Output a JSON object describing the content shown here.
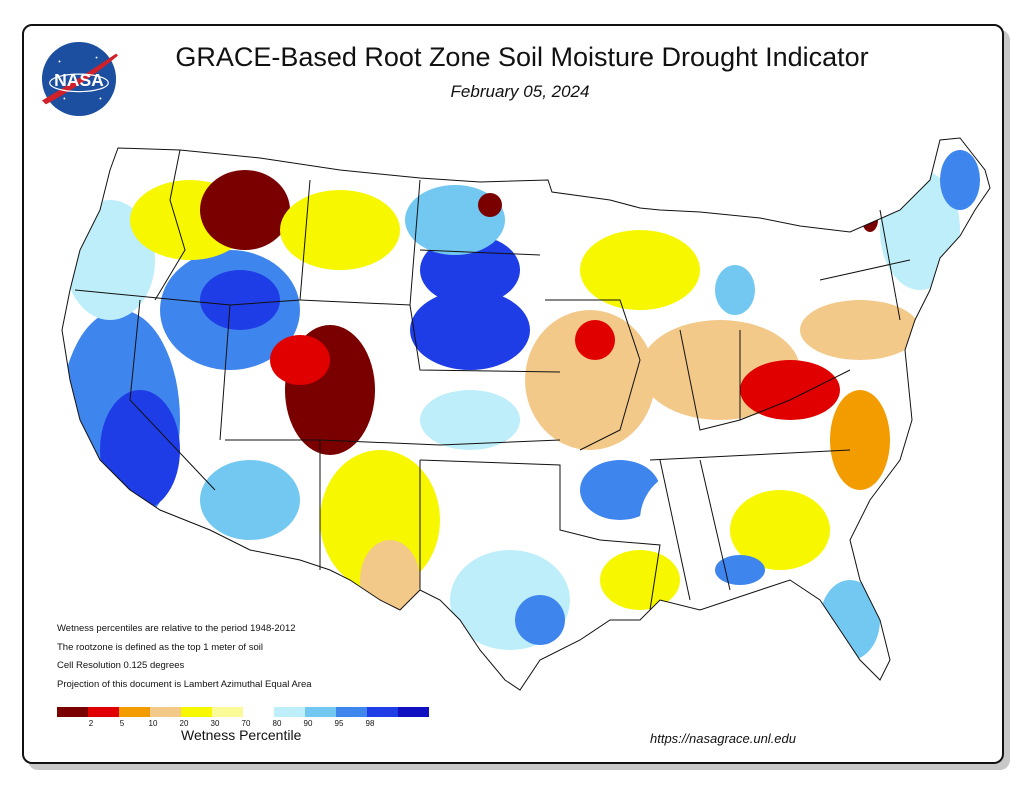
{
  "title": "GRACE-Based Root Zone Soil  Moisture Drought Indicator",
  "date": "February 05, 2024",
  "logo_text": "NASA",
  "notes": [
    "Wetness percentiles are relative to the period 1948-2012",
    "The rootzone is defined as the top 1 meter of soil",
    "Cell Resolution 0.125 degrees",
    "Projection of this document is Lambert Azimuthal Equal Area"
  ],
  "legend": {
    "title": "Wetness Percentile",
    "colors": [
      "#7a0000",
      "#e00000",
      "#f39c00",
      "#f3c98a",
      "#f7f700",
      "#fbfb9a",
      "#ffffff",
      "#bdeefa",
      "#72c8f0",
      "#3f85ee",
      "#1f3de6",
      "#1010c0"
    ],
    "ticks": [
      "2",
      "5",
      "10",
      "20",
      "30",
      "70",
      "80",
      "90",
      "95",
      "98"
    ]
  },
  "url": "https://nasagrace.unl.edu"
}
